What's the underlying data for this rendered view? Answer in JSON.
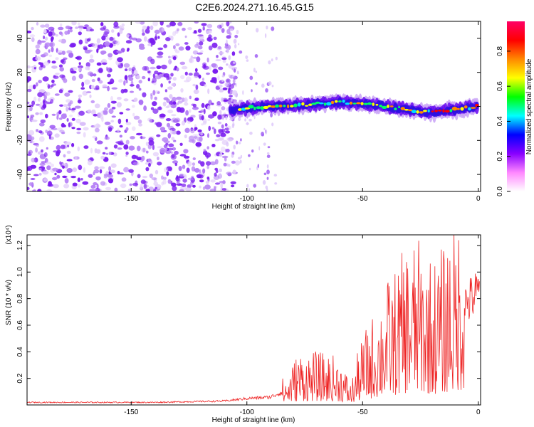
{
  "title": "C2E6.2024.271.16.45.G15",
  "chart_data": [
    {
      "type": "heatmap",
      "xlabel": "Height of straight line (km)",
      "ylabel": "Frequency (Hz)",
      "xlim": [
        -195,
        1
      ],
      "ylim": [
        -50,
        50
      ],
      "xticks": [
        -150,
        -100,
        -50,
        0
      ],
      "yticks": [
        -40,
        -20,
        0,
        20,
        40
      ],
      "colorbar": {
        "label": "Normalized spectral amplitude",
        "range": [
          0,
          0.97
        ],
        "ticks": [
          0.0,
          0.2,
          0.4,
          0.6,
          0.8
        ],
        "colormap": [
          "#ffffff",
          "#ff88ff",
          "#8800ff",
          "#0000ff",
          "#00ffff",
          "#00ff00",
          "#ffff00",
          "#ff8800",
          "#ff0000",
          "#ff0066"
        ]
      },
      "noise_region_x": [
        -195,
        -110
      ],
      "signal_track": {
        "x": [
          -107,
          -100,
          -90,
          -80,
          -70,
          -60,
          -50,
          -40,
          -30,
          -20,
          -10,
          0
        ],
        "frequency": [
          -3,
          -1,
          0,
          0.5,
          1.5,
          2.5,
          1.5,
          0,
          -2,
          -3.5,
          -2,
          0
        ]
      }
    },
    {
      "type": "line",
      "xlabel": "Height of straight line (km)",
      "ylabel": "SNR (10 * v/v)",
      "ylabel_scale": "(x10⁴)",
      "xlim": [
        -195,
        1
      ],
      "ylim": [
        0,
        1.28
      ],
      "xticks": [
        -150,
        -100,
        -50,
        0
      ],
      "yticks": [
        0.2,
        0.4,
        0.6,
        0.8,
        1.0,
        1.2
      ],
      "series": [
        {
          "color": "#ee2222",
          "envelope_x": [
            -195,
            -140,
            -110,
            -100,
            -90,
            -82,
            -78,
            -72,
            -65,
            -60,
            -55,
            -52,
            -48,
            -44,
            -40,
            -36,
            -32,
            -30,
            -27,
            -24,
            -20,
            -17,
            -15,
            -13,
            -12,
            -10,
            -8,
            -6,
            -4,
            -2,
            0
          ],
          "envelope_y": [
            0.02,
            0.02,
            0.03,
            0.05,
            0.06,
            0.12,
            0.2,
            0.2,
            0.19,
            0.18,
            0.08,
            0.2,
            0.3,
            0.36,
            0.46,
            0.5,
            0.58,
            0.62,
            0.62,
            0.6,
            0.55,
            0.56,
            0.6,
            0.65,
            0.7,
            0.66,
            0.72,
            0.78,
            0.8,
            0.84,
            0.86
          ]
        }
      ]
    }
  ]
}
